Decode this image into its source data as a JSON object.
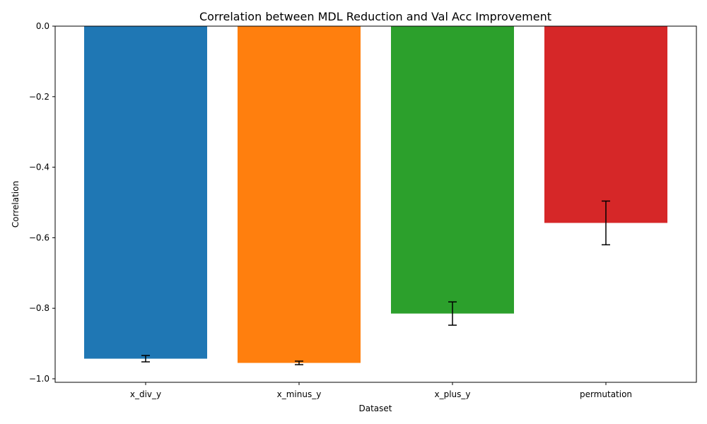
{
  "chart_data": {
    "type": "bar",
    "title": "Correlation between MDL Reduction and Val Acc Improvement",
    "xlabel": "Dataset",
    "ylabel": "Correlation",
    "categories": [
      "x_div_y",
      "x_minus_y",
      "x_plus_y",
      "permutation"
    ],
    "values": [
      -0.943,
      -0.955,
      -0.815,
      -0.558
    ],
    "errors": [
      0.009,
      0.005,
      0.033,
      0.062
    ],
    "colors": [
      "#1f77b4",
      "#ff7f0e",
      "#2ca02c",
      "#d62728"
    ],
    "ylim": [
      -1.01,
      0.0
    ],
    "yticks": [
      0.0,
      -0.2,
      -0.4,
      -0.6,
      -0.8,
      -1.0
    ],
    "ytick_labels": [
      "0.0",
      "−0.2",
      "−0.4",
      "−0.6",
      "−0.8",
      "−1.0"
    ],
    "grid": false,
    "error_bar_color": "#000000"
  }
}
